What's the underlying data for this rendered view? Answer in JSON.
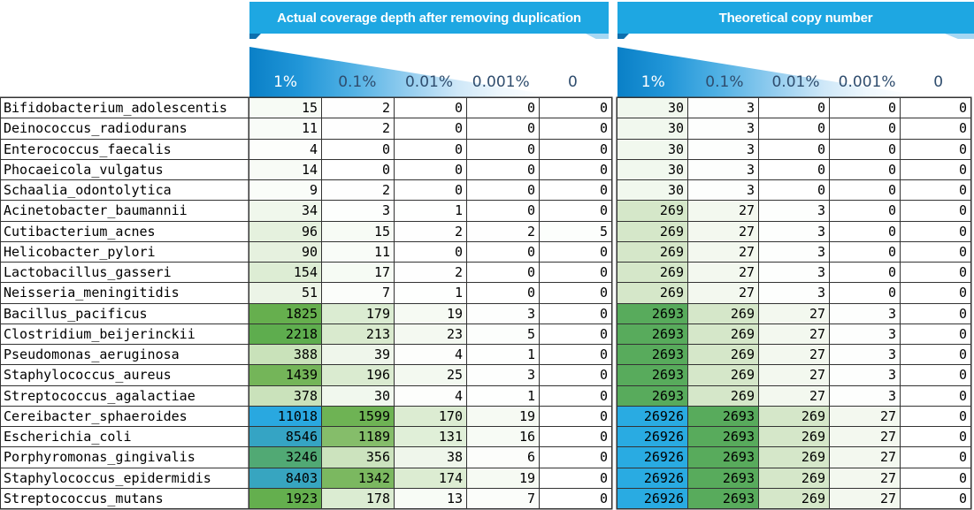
{
  "colors": {
    "header_bar": "#1ea7e2",
    "fold_dark": "#0d6fae",
    "fold_light": "#a5d7f3",
    "wedge_gradient_start": "#0a80c7",
    "pct_label_text": "#2f4d6e",
    "pct_label_text_on_blue": "#ffffff",
    "grid_line": "#333333",
    "heatmap_stops": [
      [
        0,
        "#ffffff"
      ],
      [
        15,
        "#f7fbf5"
      ],
      [
        34,
        "#f0f7ec"
      ],
      [
        51,
        "#ecf4e7"
      ],
      [
        96,
        "#e5f1de"
      ],
      [
        154,
        "#ddedd4"
      ],
      [
        269,
        "#d5e7c9"
      ],
      [
        388,
        "#c9e2ba"
      ],
      [
        1189,
        "#85bd6a"
      ],
      [
        1439,
        "#74b559"
      ],
      [
        1825,
        "#66af4e"
      ],
      [
        2218,
        "#5ead4e"
      ],
      [
        2693,
        "#58ab5c"
      ],
      [
        3246,
        "#51a974"
      ],
      [
        8403,
        "#37a5c0"
      ],
      [
        8546,
        "#35a4c4"
      ],
      [
        11018,
        "#29a8e0"
      ],
      [
        26926,
        "#29abe2"
      ]
    ]
  },
  "chart_data": [
    {
      "type": "heatmap",
      "title": "Actual coverage depth after removing duplication",
      "columns": [
        "1%",
        "0.1%",
        "0.01%",
        "0.001%",
        "0"
      ],
      "rows": [
        "Bifidobacterium_adolescentis",
        "Deinococcus_radiodurans",
        "Enterococcus_faecalis",
        "Phocaeicola_vulgatus",
        "Schaalia_odontolytica",
        "Acinetobacter_baumannii",
        "Cutibacterium_acnes",
        "Helicobacter_pylori",
        "Lactobacillus_gasseri",
        "Neisseria_meningitidis",
        "Bacillus_pacificus",
        "Clostridium_beijerinckii",
        "Pseudomonas_aeruginosa",
        "Staphylococcus_aureus",
        "Streptococcus_agalactiae",
        "Cereibacter_sphaeroides",
        "Escherichia_coli",
        "Porphyromonas_gingivalis",
        "Staphylococcus_epidermidis",
        "Streptococcus_mutans"
      ],
      "values": [
        [
          15,
          2,
          0,
          0,
          0
        ],
        [
          11,
          2,
          0,
          0,
          0
        ],
        [
          4,
          0,
          0,
          0,
          0
        ],
        [
          14,
          0,
          0,
          0,
          0
        ],
        [
          9,
          2,
          0,
          0,
          0
        ],
        [
          34,
          3,
          1,
          0,
          0
        ],
        [
          96,
          15,
          2,
          2,
          5
        ],
        [
          90,
          11,
          0,
          0,
          0
        ],
        [
          154,
          17,
          2,
          0,
          0
        ],
        [
          51,
          7,
          1,
          0,
          0
        ],
        [
          1825,
          179,
          19,
          3,
          0
        ],
        [
          2218,
          213,
          23,
          5,
          0
        ],
        [
          388,
          39,
          4,
          1,
          0
        ],
        [
          1439,
          196,
          25,
          3,
          0
        ],
        [
          378,
          30,
          4,
          1,
          0
        ],
        [
          11018,
          1599,
          170,
          19,
          0
        ],
        [
          8546,
          1189,
          131,
          16,
          0
        ],
        [
          3246,
          356,
          38,
          6,
          0
        ],
        [
          8403,
          1342,
          174,
          19,
          0
        ],
        [
          1923,
          178,
          13,
          7,
          0
        ]
      ]
    },
    {
      "type": "heatmap",
      "title": "Theoretical copy number",
      "columns": [
        "1%",
        "0.1%",
        "0.01%",
        "0.001%",
        "0"
      ],
      "rows": [
        "Bifidobacterium_adolescentis",
        "Deinococcus_radiodurans",
        "Enterococcus_faecalis",
        "Phocaeicola_vulgatus",
        "Schaalia_odontolytica",
        "Acinetobacter_baumannii",
        "Cutibacterium_acnes",
        "Helicobacter_pylori",
        "Lactobacillus_gasseri",
        "Neisseria_meningitidis",
        "Bacillus_pacificus",
        "Clostridium_beijerinckii",
        "Pseudomonas_aeruginosa",
        "Staphylococcus_aureus",
        "Streptococcus_agalactiae",
        "Cereibacter_sphaeroides",
        "Escherichia_coli",
        "Porphyromonas_gingivalis",
        "Staphylococcus_epidermidis",
        "Streptococcus_mutans"
      ],
      "values": [
        [
          30,
          3,
          0,
          0,
          0
        ],
        [
          30,
          3,
          0,
          0,
          0
        ],
        [
          30,
          3,
          0,
          0,
          0
        ],
        [
          30,
          3,
          0,
          0,
          0
        ],
        [
          30,
          3,
          0,
          0,
          0
        ],
        [
          269,
          27,
          3,
          0,
          0
        ],
        [
          269,
          27,
          3,
          0,
          0
        ],
        [
          269,
          27,
          3,
          0,
          0
        ],
        [
          269,
          27,
          3,
          0,
          0
        ],
        [
          269,
          27,
          3,
          0,
          0
        ],
        [
          2693,
          269,
          27,
          3,
          0
        ],
        [
          2693,
          269,
          27,
          3,
          0
        ],
        [
          2693,
          269,
          27,
          3,
          0
        ],
        [
          2693,
          269,
          27,
          3,
          0
        ],
        [
          2693,
          269,
          27,
          3,
          0
        ],
        [
          26926,
          2693,
          269,
          27,
          0
        ],
        [
          26926,
          2693,
          269,
          27,
          0
        ],
        [
          26926,
          2693,
          269,
          27,
          0
        ],
        [
          26926,
          2693,
          269,
          27,
          0
        ],
        [
          26926,
          2693,
          269,
          27,
          0
        ]
      ]
    }
  ]
}
